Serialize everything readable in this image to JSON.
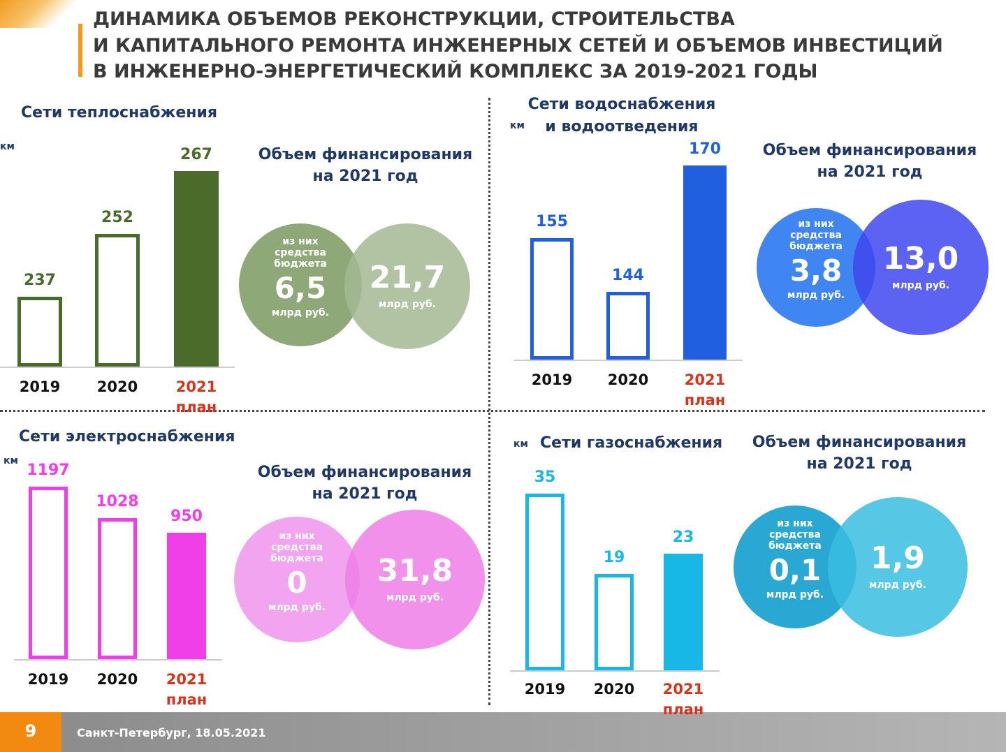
{
  "title": [
    "ДИНАМИКА ОБЪЕМОВ РЕКОНСТРУКЦИИ, СТРОИТЕЛЬСТВА",
    "И КАПИТАЛЬНОГО РЕМОНТА ИНЖЕНЕРНЫХ СЕТЕЙ И ОБЪЕМОВ ИНВЕСТИЦИЙ",
    "В ИНЖЕНЕРНО-ЭНЕРГЕТИЧЕСКИЙ КОМПЛЕКС ЗА 2019-2021 ГОДЫ"
  ],
  "footer": {
    "page": "9",
    "text": "Санкт-Петербург, 18.05.2021"
  },
  "chart_data": [
    {
      "type": "bar",
      "title": "Сети теплоснабжения",
      "unit": "км",
      "categories": [
        "2019",
        "2020",
        "2021 план"
      ],
      "values": [
        237,
        252,
        267
      ],
      "filled": [
        false,
        false,
        true
      ],
      "color": "#4a6b2a",
      "circle_colors": [
        "#8fa878",
        "#a3b892"
      ],
      "funding": {
        "title": "Объем финансирования на 2021 год",
        "budget": {
          "label": "из них средства бюджета",
          "value": "6,5",
          "unit": "млрд руб."
        },
        "total": {
          "value": "21,7",
          "unit": "млрд руб."
        }
      }
    },
    {
      "type": "bar",
      "title": "Сети водоснабжения и водоотведения",
      "unit": "км",
      "categories": [
        "2019",
        "2020",
        "2021 план"
      ],
      "values": [
        155,
        144,
        170
      ],
      "filled": [
        false,
        false,
        true
      ],
      "color": "#1f5fe0",
      "circle_colors": [
        "#3f86f2",
        "#3f47ee"
      ],
      "funding": {
        "title": "Объем финансирования на 2021 год",
        "budget": {
          "label": "из них средства бюджета",
          "value": "3,8",
          "unit": "млрд руб."
        },
        "total": {
          "value": "13,0",
          "unit": "млрд руб."
        }
      }
    },
    {
      "type": "bar",
      "title": "Сети электроснабжения",
      "unit": "км",
      "categories": [
        "2019",
        "2020",
        "2021 план"
      ],
      "values": [
        1197,
        1028,
        950
      ],
      "filled": [
        false,
        false,
        true
      ],
      "color": "#f03ee8",
      "circle_colors": [
        "#f3a4f0",
        "#ee7ee8"
      ],
      "funding": {
        "title": "Объем финансирования на 2021 год",
        "budget": {
          "label": "из них средства бюджета",
          "value": "0",
          "unit": "млрд руб."
        },
        "total": {
          "value": "31,8",
          "unit": "млрд руб."
        }
      }
    },
    {
      "type": "bar",
      "title": "Сети газоснабжения",
      "unit": "км",
      "categories": [
        "2019",
        "2020",
        "2021 план"
      ],
      "values": [
        35,
        19,
        23
      ],
      "filled": [
        false,
        false,
        true
      ],
      "color": "#18b8e6",
      "circle_colors": [
        "#2aa8d4",
        "#38bde0"
      ],
      "funding": {
        "title": "Объем финансирования на 2021 год",
        "budget": {
          "label": "из них средства бюджета",
          "value": "0,1",
          "unit": "млрд руб."
        },
        "total": {
          "value": "1,9",
          "unit": "млрд руб."
        }
      }
    }
  ]
}
